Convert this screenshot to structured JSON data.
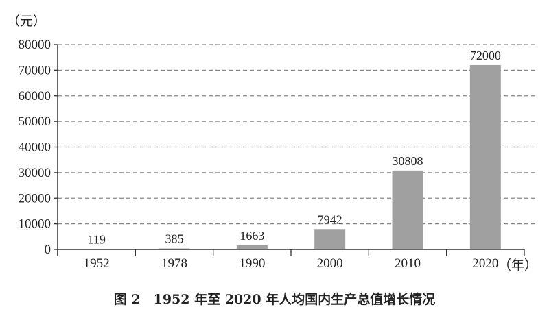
{
  "chart_data": {
    "type": "bar",
    "title": "图 2　1952 年至 2020 年人均国内生产总值增长情况",
    "ylabel": "（元）",
    "xlabel": "（年）",
    "categories": [
      "1952",
      "1978",
      "1990",
      "2000",
      "2010",
      "2020"
    ],
    "values": [
      119,
      385,
      1663,
      7942,
      30808,
      72000
    ],
    "data_labels": [
      "119",
      "385",
      "1663",
      "7942",
      "30808",
      "72000"
    ],
    "ylim": [
      0,
      80000
    ],
    "yticks": [
      0,
      10000,
      20000,
      30000,
      40000,
      50000,
      60000,
      70000,
      80000
    ],
    "grid": "horizontal dashed",
    "bar_color": "#a0a0a0",
    "legend": "none"
  }
}
